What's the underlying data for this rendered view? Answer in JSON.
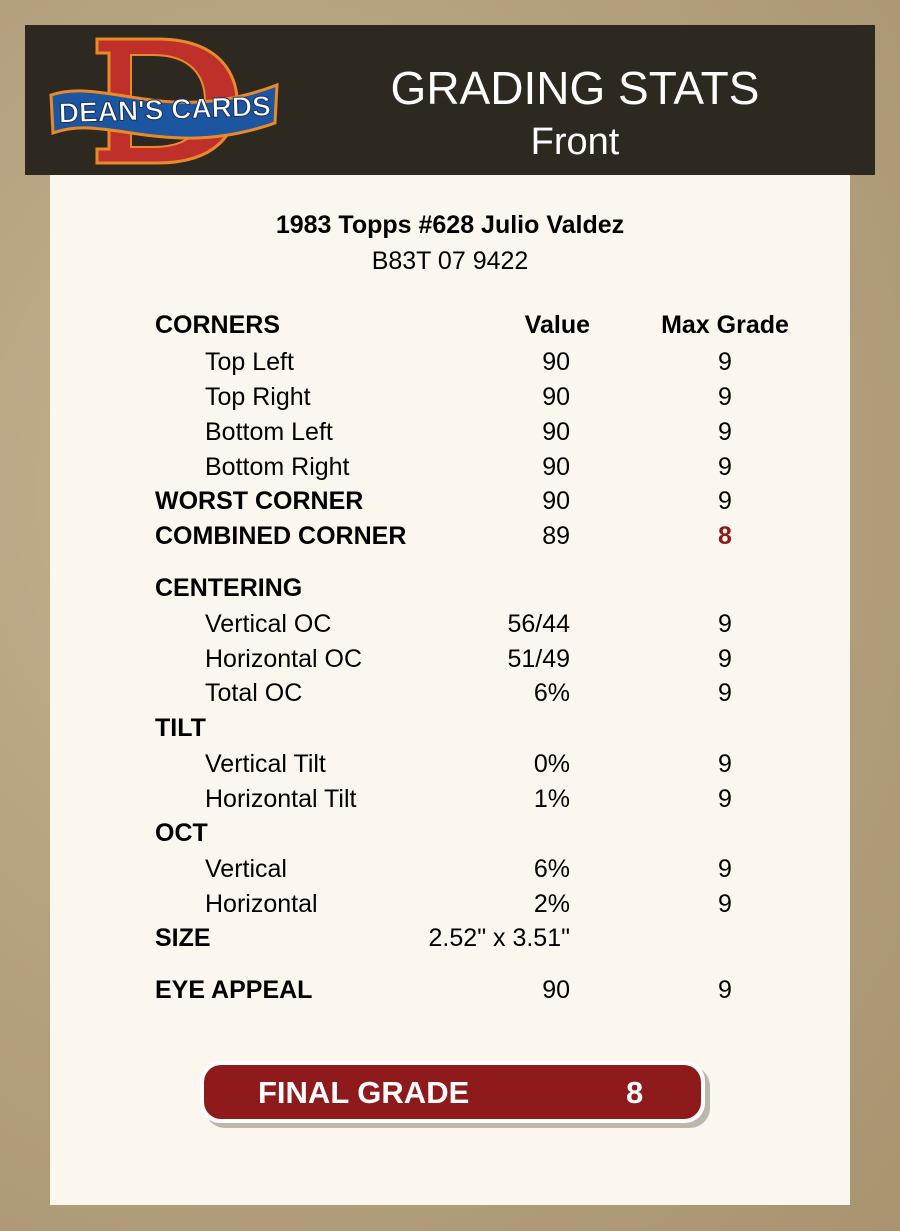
{
  "header": {
    "logo_text": "DEAN'S CARDS",
    "title": "GRADING STATS",
    "subtitle": "Front"
  },
  "card": {
    "name": "1983 Topps #628 Julio Valdez",
    "cert": "B83T 07 9422"
  },
  "columns": {
    "value": "Value",
    "max": "Max Grade"
  },
  "rows": [
    {
      "label": "CORNERS",
      "value": "",
      "max": "",
      "style": "hdr"
    },
    {
      "label": "Top Left",
      "value": "90",
      "max": "9",
      "style": "sub"
    },
    {
      "label": "Top Right",
      "value": "90",
      "max": "9",
      "style": "sub"
    },
    {
      "label": "Bottom Left",
      "value": "90",
      "max": "9",
      "style": "sub"
    },
    {
      "label": "Bottom Right",
      "value": "90",
      "max": "9",
      "style": "sub"
    },
    {
      "label": "WORST CORNER",
      "value": "90",
      "max": "9",
      "style": "bold"
    },
    {
      "label": "COMBINED CORNER",
      "value": "89",
      "max": "8",
      "style": "bold",
      "highlight": true
    },
    {
      "label": "CENTERING",
      "value": "",
      "max": "",
      "style": "bold"
    },
    {
      "label": "Vertical OC",
      "value": "56/44",
      "max": "9",
      "style": "sub"
    },
    {
      "label": "Horizontal OC",
      "value": "51/49",
      "max": "9",
      "style": "sub"
    },
    {
      "label": "Total OC",
      "value": "6%",
      "max": "9",
      "style": "sub"
    },
    {
      "label": "TILT",
      "value": "",
      "max": "",
      "style": "bold"
    },
    {
      "label": "Vertical Tilt",
      "value": "0%",
      "max": "9",
      "style": "sub"
    },
    {
      "label": "Horizontal Tilt",
      "value": "1%",
      "max": "9",
      "style": "sub"
    },
    {
      "label": "OCT",
      "value": "",
      "max": "",
      "style": "bold"
    },
    {
      "label": "Vertical",
      "value": "6%",
      "max": "9",
      "style": "sub"
    },
    {
      "label": "Horizontal",
      "value": "2%",
      "max": "9",
      "style": "sub"
    },
    {
      "label": "SIZE",
      "value": "2.52\" x 3.51\"",
      "max": "",
      "style": "bold"
    },
    {
      "label": "EYE APPEAL",
      "value": "90",
      "max": "9",
      "style": "bold"
    }
  ],
  "final": {
    "label": "FINAL GRADE",
    "value": "8"
  },
  "colors": {
    "header_bg": "#2e2920",
    "panel_bg": "#fbf7ee",
    "accent_red": "#8e1a1c"
  }
}
